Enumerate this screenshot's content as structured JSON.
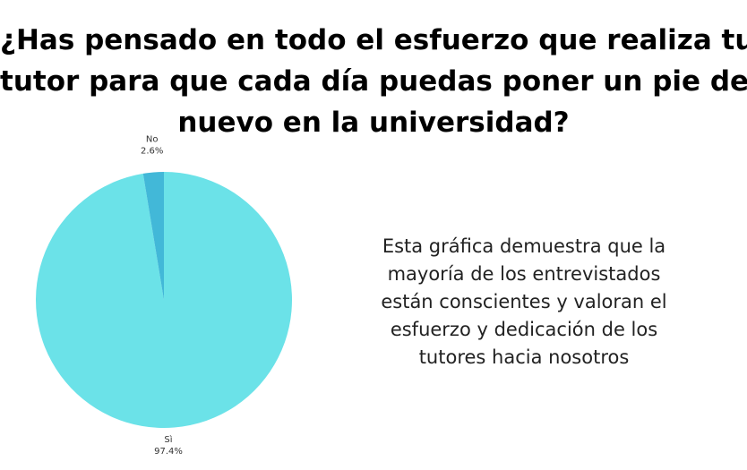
{
  "title_lines": [
    "¿Has pensado en todo el esfuerzo que realiza tu",
    "tutor para que cada día puedas poner un pie de",
    "nuevo en la universidad?"
  ],
  "note_lines": [
    "Esta gráfica demuestra que la",
    "mayoría de los entrevistados",
    "están conscientes y valoran el",
    "esfuerzo y dedicación de los",
    "tutores hacia nosotros"
  ],
  "colors": {
    "si": "#6be2e8",
    "no": "#42b8d8"
  },
  "chart_data": {
    "type": "pie",
    "title": "¿Has pensado en todo el esfuerzo que realiza tu tutor para que cada día puedas poner un pie de nuevo en la universidad?",
    "slices": [
      {
        "label": "Sì",
        "percent_label": "97.4%",
        "value": 97.4,
        "color": "#6be2e8"
      },
      {
        "label": "No",
        "percent_label": "2.6%",
        "value": 2.6,
        "color": "#42b8d8"
      }
    ]
  }
}
